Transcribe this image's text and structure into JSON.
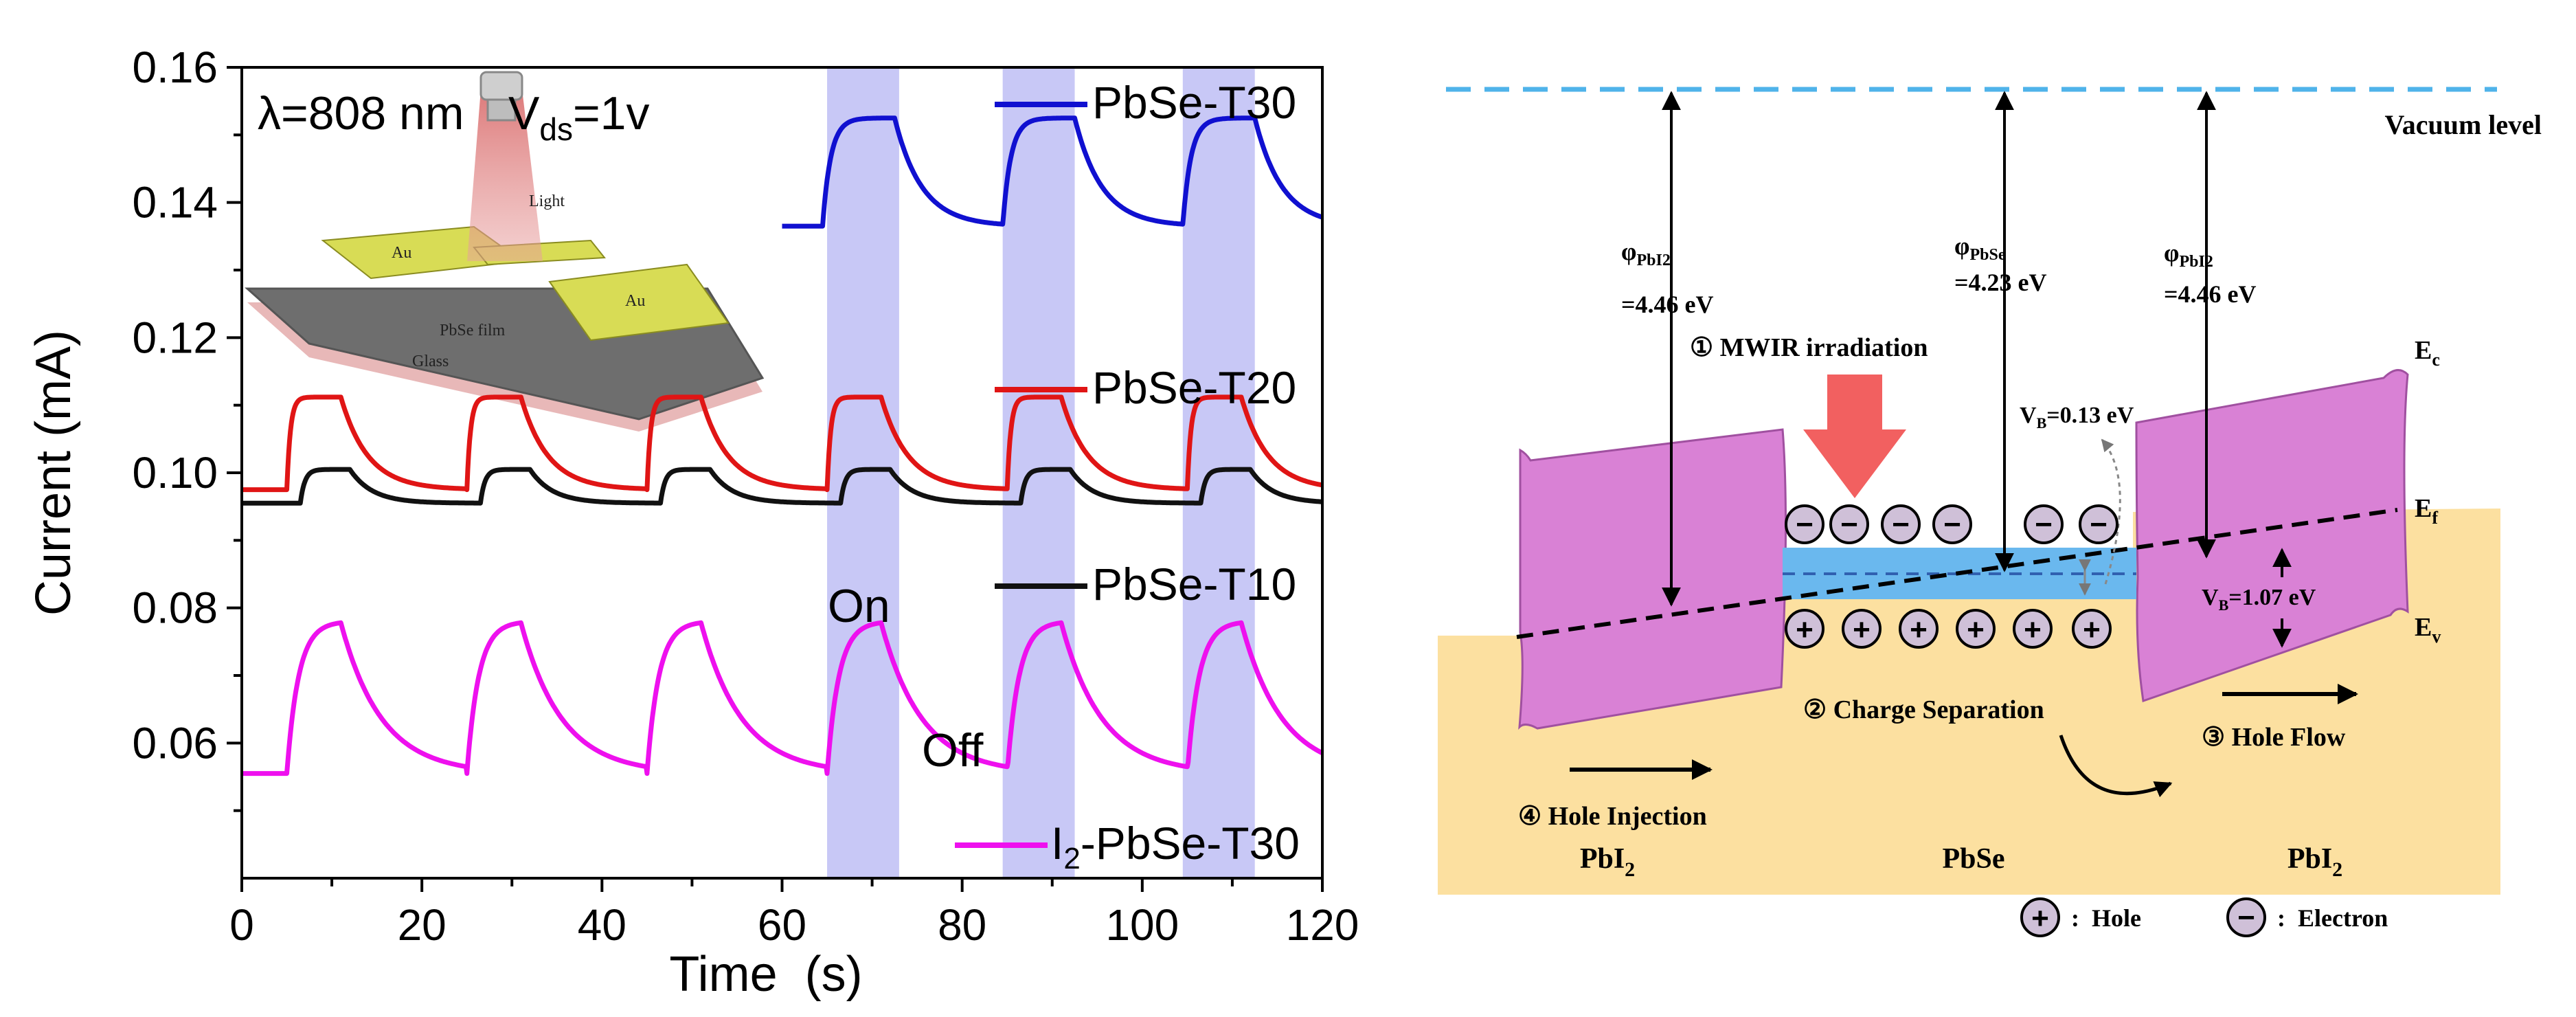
{
  "chart_data": {
    "type": "line",
    "title": "",
    "xlabel": "Time  (s)",
    "ylabel": "Current (mA)",
    "xlim": [
      0,
      120
    ],
    "ylim": [
      0.04,
      0.16
    ],
    "x_ticks": [
      "0",
      "20",
      "40",
      "60",
      "80",
      "100",
      "120"
    ],
    "y_ticks": [
      "0.06",
      "0.08",
      "0.10",
      "0.12",
      "0.14",
      "0.16"
    ],
    "annotation_condition": "λ=808 nm",
    "vds_label": "V",
    "vds_sub": "ds",
    "vds_value": "=1v",
    "on_label": "On",
    "off_label": "Off",
    "light_on_windows": [
      [
        65,
        73
      ],
      [
        84.5,
        92.5
      ],
      [
        104.5,
        112.5
      ]
    ],
    "inset": {
      "light": "Light",
      "au_left": "Au",
      "au_right": "Au",
      "film": "PbSe film",
      "glass": "Glass"
    },
    "series": [
      {
        "name": "PbSe-T30",
        "legend": "PbSe-T30",
        "color": "#1010d0",
        "base": 0.1365,
        "peak": 0.1525,
        "cycles": [
          [
            64.5,
            72.5
          ],
          [
            84.5,
            92.5
          ],
          [
            104.5,
            112.5
          ]
        ],
        "x_start": 60,
        "x_end": 120,
        "tau_on": 0.9,
        "tau_off": 3.0
      },
      {
        "name": "PbSe-T20",
        "legend": "PbSe-T20",
        "color": "#e01515",
        "base": 0.0975,
        "peak": 0.1112,
        "cycles": [
          [
            5,
            11
          ],
          [
            25,
            31
          ],
          [
            45,
            51
          ],
          [
            65,
            71
          ],
          [
            85,
            91
          ],
          [
            105,
            111
          ]
        ],
        "x_start": 0,
        "x_end": 120,
        "tau_on": 0.4,
        "tau_off": 3.0
      },
      {
        "name": "PbSe-T10",
        "legend": "PbSe-T10",
        "color": "#111111",
        "base": 0.0955,
        "peak": 0.1005,
        "cycles": [
          [
            6.5,
            12
          ],
          [
            26.5,
            32
          ],
          [
            46.5,
            52
          ],
          [
            66.5,
            72
          ],
          [
            86.5,
            92
          ],
          [
            106.5,
            112
          ]
        ],
        "x_start": 0,
        "x_end": 120,
        "tau_on": 0.5,
        "tau_off": 2.5
      },
      {
        "name": "I2-PbSe-T30",
        "legend_prefix": "I",
        "legend_sub": "2",
        "legend_suffix": "-PbSe-T30",
        "color": "#ee10ee",
        "base": 0.0555,
        "peak": 0.0778,
        "cycles": [
          [
            5,
            11
          ],
          [
            25,
            31
          ],
          [
            45,
            51
          ],
          [
            65,
            71
          ],
          [
            85,
            91
          ],
          [
            105,
            111
          ]
        ],
        "x_start": 0,
        "x_end": 120,
        "tau_on": 1.3,
        "tau_off": 4.5
      }
    ]
  },
  "diagram": {
    "vacuum_level": "Vacuum level",
    "phi_left_symbol": "φ",
    "phi_left_sub": "PbI2",
    "phi_left_value": "=4.46 eV",
    "phi_mid_symbol": "φ",
    "phi_mid_sub": "PbSe",
    "phi_mid_value": "=4.23 eV",
    "phi_right_symbol": "φ",
    "phi_right_sub": "PbI2",
    "phi_right_value": "=4.46 eV",
    "step1": "① MWIR irradiation",
    "step2": "② Charge Separation",
    "step3": "③ Hole Flow",
    "step4": "④ Hole Injection",
    "vb_small_prefix": "V",
    "vb_small_sub": "B",
    "vb_small_value": "=0.13 eV",
    "vb_large_prefix": "V",
    "vb_large_sub": "B",
    "vb_large_value": "=1.07 eV",
    "ec_main": "E",
    "ec_sub": "c",
    "ef_main": "E",
    "ef_sub": "f",
    "ev_main": "E",
    "ev_sub": "v",
    "left_material_main": "PbI",
    "left_material_sub": "2",
    "mid_material": "PbSe",
    "right_material_main": "PbI",
    "right_material_sub": "2",
    "electron_symbol": "−",
    "hole_symbol": "+",
    "legend_hole": ":  Hole",
    "legend_electron": ":  Electron"
  }
}
